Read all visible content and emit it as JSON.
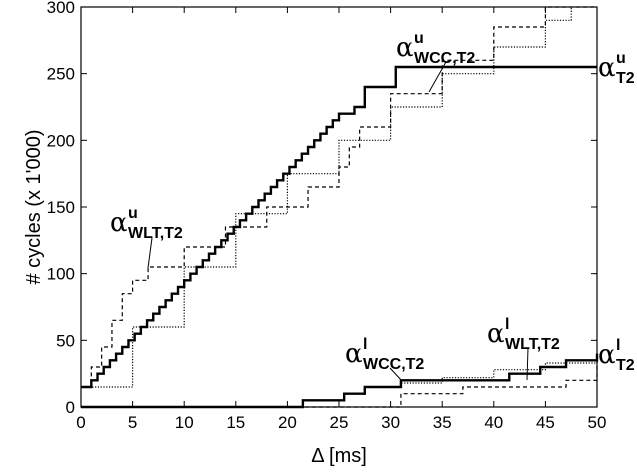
{
  "chart_data": {
    "type": "line",
    "xlabel": "Δ [ms]",
    "ylabel": "# cycles (x 1'000)",
    "xlim": [
      0,
      50
    ],
    "ylim": [
      0,
      300
    ],
    "xticks": [
      0,
      5,
      10,
      15,
      20,
      25,
      30,
      35,
      40,
      45,
      50
    ],
    "yticks": [
      0,
      50,
      100,
      150,
      200,
      250,
      300
    ],
    "grid": false,
    "legend": "none",
    "series": [
      {
        "key": "t2_upper",
        "style": "solid",
        "x": [
          0,
          1,
          1.6,
          2.2,
          2.8,
          3.4,
          4.0,
          4.6,
          5.2,
          5.8,
          6.4,
          7.0,
          7.6,
          8.2,
          8.8,
          9.4,
          10.0,
          10.6,
          11.2,
          11.8,
          12.4,
          13.0,
          13.6,
          14.2,
          14.8,
          15.4,
          16.0,
          16.6,
          17.2,
          17.8,
          18.4,
          19.0,
          19.6,
          20.2,
          20.8,
          21.4,
          22.0,
          22.6,
          23.2,
          23.8,
          24.4,
          25.0,
          26.5,
          27.5,
          30.5,
          34.5,
          38.5,
          42.5,
          46.5,
          50
        ],
        "y": [
          15,
          20,
          25,
          30,
          35,
          40,
          45,
          50,
          55,
          60,
          65,
          70,
          75,
          80,
          85,
          90,
          95,
          100,
          105,
          110,
          115,
          120,
          125,
          130,
          135,
          140,
          145,
          150,
          155,
          160,
          165,
          170,
          175,
          180,
          185,
          190,
          195,
          200,
          205,
          210,
          215,
          220,
          225,
          240,
          255,
          255,
          255,
          255,
          255,
          255
        ]
      },
      {
        "key": "t2_lower",
        "style": "solid",
        "x": [
          0,
          21.5,
          25.5,
          27.5,
          31,
          37.5,
          41.5,
          44.5,
          47,
          50
        ],
        "y": [
          0,
          5,
          10,
          15,
          20,
          20,
          25,
          30,
          35,
          40
        ]
      },
      {
        "key": "wlt_upper",
        "style": "dashed",
        "x": [
          0,
          1,
          2,
          3,
          4,
          5,
          6.5,
          10,
          14,
          18,
          22,
          25,
          26,
          27,
          30,
          35,
          40,
          45,
          50
        ],
        "y": [
          15,
          30,
          45,
          65,
          85,
          95,
          105,
          120,
          135,
          150,
          165,
          180,
          195,
          210,
          235,
          260,
          285,
          300,
          300
        ]
      },
      {
        "key": "wlt_lower",
        "style": "dashed",
        "x": [
          0,
          31,
          37,
          47,
          50
        ],
        "y": [
          0,
          10,
          15,
          20,
          40
        ]
      },
      {
        "key": "wcc_upper",
        "style": "dotted",
        "x": [
          0,
          5,
          10,
          15,
          20,
          25,
          30,
          35,
          40,
          45,
          47.5
        ],
        "y": [
          15,
          60,
          105,
          145,
          175,
          200,
          225,
          250,
          270,
          290,
          300
        ]
      },
      {
        "key": "wcc_lower",
        "style": "dotted",
        "x": [
          0,
          21.5,
          25.5,
          27.5,
          31,
          35,
          40,
          45,
          50
        ],
        "y": [
          0,
          5,
          10,
          15,
          18,
          22,
          28,
          33,
          38
        ]
      }
    ],
    "annotations": [
      {
        "key": "wcc_upper",
        "sym": "α",
        "sup": "u",
        "sub": "WCC,T2"
      },
      {
        "key": "t2_upper",
        "sym": "α",
        "sup": "u",
        "sub": "T2"
      },
      {
        "key": "wlt_upper",
        "sym": "α",
        "sup": "u",
        "sub": "WLT,T2"
      },
      {
        "key": "wcc_lower",
        "sym": "α",
        "sup": "l",
        "sub": "WCC,T2"
      },
      {
        "key": "wlt_lower",
        "sym": "α",
        "sup": "l",
        "sub": "WLT,T2"
      },
      {
        "key": "t2_lower",
        "sym": "α",
        "sup": "l",
        "sub": "T2"
      }
    ]
  }
}
